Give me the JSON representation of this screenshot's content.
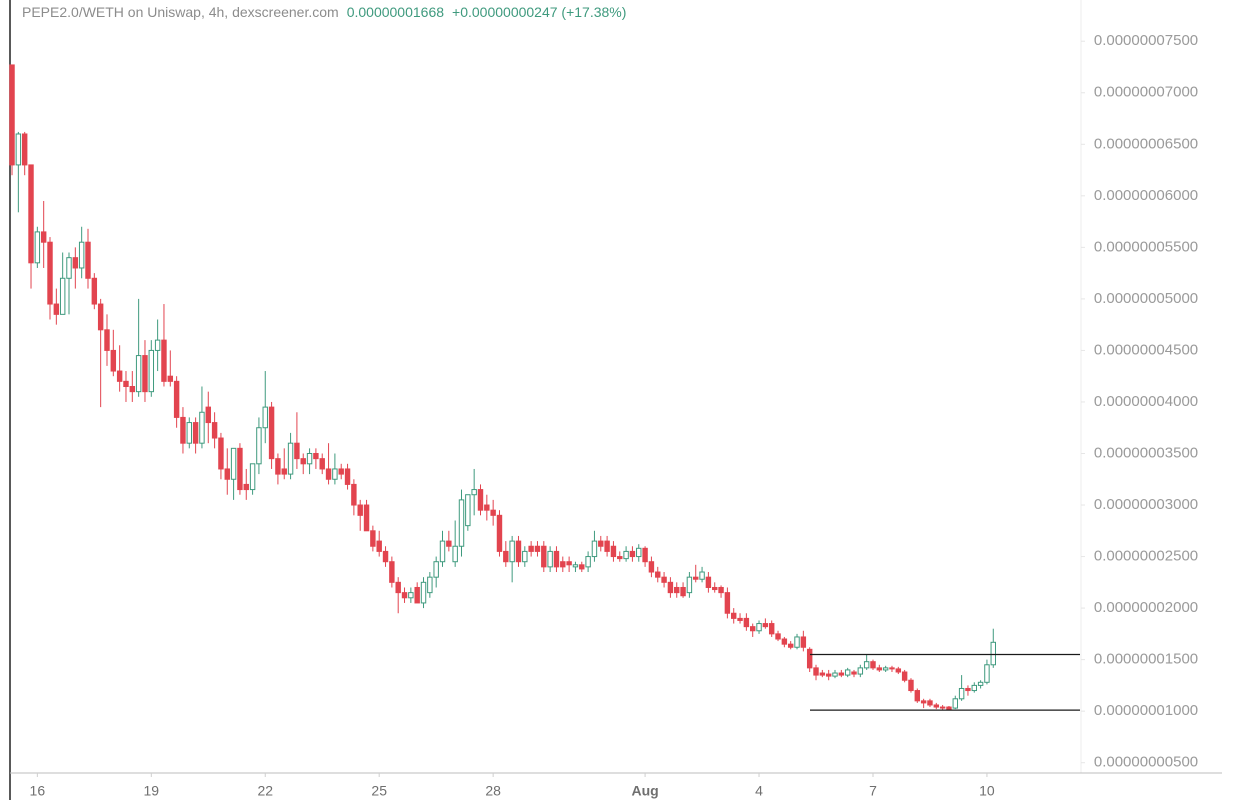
{
  "chart_data": {
    "type": "candlestick",
    "title": "PEPE2.0/WETH on Uniswap, 4h, dexscreener.com",
    "price_label": "0.00000001668",
    "change_label": "+0.00000000247 (+17.38%)",
    "up_color": "#3f9a7e",
    "down_color": "#e2444f",
    "line_color": "#1a1a1a",
    "ylim": [
      4e-09,
      7.9e-08
    ],
    "yticks": [
      {
        "value": 5e-09,
        "label": "0.00000000500"
      },
      {
        "value": 1e-08,
        "label": "0.00000001000"
      },
      {
        "value": 1.5e-08,
        "label": "0.00000001500"
      },
      {
        "value": 2e-08,
        "label": "0.00000002000"
      },
      {
        "value": 2.5e-08,
        "label": "0.00000002500"
      },
      {
        "value": 3e-08,
        "label": "0.00000003000"
      },
      {
        "value": 3.5e-08,
        "label": "0.00000003500"
      },
      {
        "value": 4e-08,
        "label": "0.00000004000"
      },
      {
        "value": 4.5e-08,
        "label": "0.00000004500"
      },
      {
        "value": 5e-08,
        "label": "0.00000005000"
      },
      {
        "value": 5.5e-08,
        "label": "0.00000005500"
      },
      {
        "value": 6e-08,
        "label": "0.00000006000"
      },
      {
        "value": 6.5e-08,
        "label": "0.00000006500"
      },
      {
        "value": 7e-08,
        "label": "0.00000007000"
      },
      {
        "value": 7.5e-08,
        "label": "0.00000007500"
      }
    ],
    "xlim": [
      -1.9,
      168.7
    ],
    "xticks": [
      {
        "value": 4,
        "label": "16"
      },
      {
        "value": 22,
        "label": "19"
      },
      {
        "value": 40,
        "label": "22"
      },
      {
        "value": 58,
        "label": "25"
      },
      {
        "value": 76,
        "label": "28"
      },
      {
        "value": 100,
        "label": "Aug"
      },
      {
        "value": 118,
        "label": "4"
      },
      {
        "value": 136,
        "label": "7"
      },
      {
        "value": 154,
        "label": "10"
      }
    ],
    "hlines": [
      1.55e-08,
      1.01e-08
    ],
    "open": [
      7.27e-08,
      6.3e-08,
      6.6e-08,
      6.3e-08,
      5.35e-08,
      5.65e-08,
      5.55e-08,
      4.95e-08,
      4.85e-08,
      5.2e-08,
      5.4e-08,
      5.3e-08,
      5.55e-08,
      5.2e-08,
      4.95e-08,
      4.7e-08,
      4.5e-08,
      4.3e-08,
      4.2e-08,
      4.15e-08,
      4.1e-08,
      4.45e-08,
      4.1e-08,
      4.5e-08,
      4.6e-08,
      4.25e-08,
      4.2e-08,
      3.85e-08,
      3.6e-08,
      3.8e-08,
      3.6e-08,
      3.95e-08,
      3.8e-08,
      3.65e-08,
      3.35e-08,
      3.25e-08,
      3.55e-08,
      3.2e-08,
      3.15e-08,
      3.4e-08,
      3.75e-08,
      3.95e-08,
      3.45e-08,
      3.35e-08,
      3.3e-08,
      3.6e-08,
      3.45e-08,
      3.4e-08,
      3.5e-08,
      3.45e-08,
      3.35e-08,
      3.25e-08,
      3.35e-08,
      3.35e-08,
      3.2e-08,
      3e-08,
      3e-08,
      2.75e-08,
      2.65e-08,
      2.55e-08,
      2.45e-08,
      2.25e-08,
      2.15e-08,
      2.1e-08,
      2.2e-08,
      2.05e-08,
      2.15e-08,
      2.3e-08,
      2.45e-08,
      2.65e-08,
      2.45e-08,
      2.6e-08,
      2.8e-08,
      3.1e-08,
      3.15e-08,
      3e-08,
      2.95e-08,
      2.9e-08,
      2.55e-08,
      2.45e-08,
      2.65e-08,
      2.45e-08,
      2.6e-08,
      2.6e-08,
      2.6e-08,
      2.4e-08,
      2.55e-08,
      2.45e-08,
      2.45e-08,
      2.4e-08,
      2.42e-08,
      2.4e-08,
      2.5e-08,
      2.65e-08,
      2.65e-08,
      2.6e-08,
      2.5e-08,
      2.48e-08,
      2.55e-08,
      2.5e-08,
      2.58e-08,
      2.45e-08,
      2.35e-08,
      2.3e-08,
      2.25e-08,
      2.2e-08,
      2.2e-08,
      2.15e-08,
      2.3e-08,
      2.28e-08,
      2.3e-08,
      2.2e-08,
      2.2e-08,
      2.15e-08,
      1.95e-08,
      1.9e-08,
      1.9e-08,
      1.82e-08,
      1.78e-08,
      1.85e-08,
      1.85e-08,
      1.75e-08,
      1.7e-08,
      1.65e-08,
      1.62e-08,
      1.72e-08,
      1.6e-08,
      1.42e-08,
      1.37e-08,
      1.36e-08,
      1.34e-08,
      1.37e-08,
      1.35e-08,
      1.38e-08,
      1.36e-08,
      1.42e-08,
      1.48e-08,
      1.42e-08,
      1.4e-08,
      1.42e-08,
      1.41e-08,
      1.38e-08,
      1.3e-08,
      1.2e-08,
      1.1e-08,
      1.1e-08,
      1.06e-08,
      1.04e-08,
      1.04e-08,
      1.03e-08,
      1.12e-08,
      1.22e-08,
      1.2e-08,
      1.25e-08,
      1.28e-08,
      1.45e-08
    ],
    "high": [
      7.27e-08,
      6.62e-08,
      6.62e-08,
      6.3e-08,
      5.7e-08,
      5.95e-08,
      5.6e-08,
      5.1e-08,
      5.45e-08,
      5.45e-08,
      5.5e-08,
      5.7e-08,
      5.68e-08,
      5.25e-08,
      5e-08,
      4.85e-08,
      4.7e-08,
      4.55e-08,
      4.3e-08,
      4.3e-08,
      5e-08,
      4.6e-08,
      4.6e-08,
      4.8e-08,
      4.95e-08,
      4.5e-08,
      4.25e-08,
      3.95e-08,
      3.85e-08,
      3.85e-08,
      4.15e-08,
      4.1e-08,
      3.9e-08,
      3.7e-08,
      3.55e-08,
      3.55e-08,
      3.6e-08,
      3.35e-08,
      3.4e-08,
      3.85e-08,
      4.3e-08,
      4e-08,
      3.5e-08,
      3.55e-08,
      3.7e-08,
      3.9e-08,
      3.5e-08,
      3.55e-08,
      3.55e-08,
      3.5e-08,
      3.6e-08,
      3.5e-08,
      3.4e-08,
      3.4e-08,
      3.25e-08,
      3.05e-08,
      3.05e-08,
      2.8e-08,
      2.75e-08,
      2.6e-08,
      2.5e-08,
      2.3e-08,
      2.2e-08,
      2.2e-08,
      2.25e-08,
      2.3e-08,
      2.35e-08,
      2.5e-08,
      2.75e-08,
      2.75e-08,
      2.85e-08,
      3.15e-08,
      3.1e-08,
      3.35e-08,
      3.2e-08,
      3.1e-08,
      3.05e-08,
      2.95e-08,
      2.65e-08,
      2.7e-08,
      2.7e-08,
      2.6e-08,
      2.65e-08,
      2.65e-08,
      2.65e-08,
      2.6e-08,
      2.6e-08,
      2.5e-08,
      2.5e-08,
      2.45e-08,
      2.45e-08,
      2.55e-08,
      2.75e-08,
      2.7e-08,
      2.7e-08,
      2.65e-08,
      2.55e-08,
      2.6e-08,
      2.6e-08,
      2.62e-08,
      2.6e-08,
      2.5e-08,
      2.4e-08,
      2.35e-08,
      2.3e-08,
      2.25e-08,
      2.25e-08,
      2.35e-08,
      2.42e-08,
      2.4e-08,
      2.35e-08,
      2.25e-08,
      2.22e-08,
      2.2e-08,
      2e-08,
      1.95e-08,
      1.95e-08,
      1.85e-08,
      1.88e-08,
      1.9e-08,
      1.88e-08,
      1.78e-08,
      1.72e-08,
      1.68e-08,
      1.75e-08,
      1.78e-08,
      1.62e-08,
      1.45e-08,
      1.4e-08,
      1.4e-08,
      1.4e-08,
      1.4e-08,
      1.42e-08,
      1.4e-08,
      1.45e-08,
      1.55e-08,
      1.5e-08,
      1.45e-08,
      1.44e-08,
      1.44e-08,
      1.43e-08,
      1.4e-08,
      1.32e-08,
      1.22e-08,
      1.12e-08,
      1.12e-08,
      1.08e-08,
      1.06e-08,
      1.05e-08,
      1.15e-08,
      1.35e-08,
      1.25e-08,
      1.28e-08,
      1.3e-08,
      1.5e-08,
      1.8e-08
    ],
    "low": [
      6.2e-08,
      5.84e-08,
      6.2e-08,
      5.1e-08,
      5.3e-08,
      5.3e-08,
      4.8e-08,
      4.75e-08,
      4.85e-08,
      4.85e-08,
      5.1e-08,
      5.2e-08,
      5.1e-08,
      4.9e-08,
      3.95e-08,
      4.35e-08,
      4.25e-08,
      4.1e-08,
      4e-08,
      4e-08,
      4.05e-08,
      4e-08,
      4.05e-08,
      4.3e-08,
      4.15e-08,
      4.15e-08,
      3.75e-08,
      3.5e-08,
      3.55e-08,
      3.5e-08,
      3.55e-08,
      3.6e-08,
      3.55e-08,
      3.25e-08,
      3.1e-08,
      3.05e-08,
      3.1e-08,
      3.05e-08,
      3.1e-08,
      3.3e-08,
      3.6e-08,
      3.35e-08,
      3.2e-08,
      3.25e-08,
      3.25e-08,
      3.35e-08,
      3.3e-08,
      3.3e-08,
      3.35e-08,
      3.3e-08,
      3.2e-08,
      3.2e-08,
      3.25e-08,
      3.15e-08,
      2.9e-08,
      2.75e-08,
      2.75e-08,
      2.55e-08,
      2.5e-08,
      2.4e-08,
      2.2e-08,
      1.95e-08,
      2.05e-08,
      2.05e-08,
      2.05e-08,
      2e-08,
      2.1e-08,
      2.2e-08,
      2.4e-08,
      2.55e-08,
      2.4e-08,
      2.5e-08,
      2.75e-08,
      2.9e-08,
      2.9e-08,
      2.85e-08,
      2.8e-08,
      2.5e-08,
      2.4e-08,
      2.25e-08,
      2.4e-08,
      2.4e-08,
      2.5e-08,
      2.5e-08,
      2.35e-08,
      2.35e-08,
      2.35e-08,
      2.35e-08,
      2.35e-08,
      2.35e-08,
      2.35e-08,
      2.35e-08,
      2.45e-08,
      2.55e-08,
      2.5e-08,
      2.45e-08,
      2.45e-08,
      2.45e-08,
      2.45e-08,
      2.45e-08,
      2.4e-08,
      2.3e-08,
      2.25e-08,
      2.2e-08,
      2.1e-08,
      2.1e-08,
      2.1e-08,
      2.1e-08,
      2.25e-08,
      2.25e-08,
      2.15e-08,
      2.15e-08,
      2.1e-08,
      1.9e-08,
      1.85e-08,
      1.85e-08,
      1.78e-08,
      1.72e-08,
      1.75e-08,
      1.8e-08,
      1.72e-08,
      1.68e-08,
      1.62e-08,
      1.6e-08,
      1.6e-08,
      1.58e-08,
      1.38e-08,
      1.3e-08,
      1.33e-08,
      1.3e-08,
      1.32e-08,
      1.33e-08,
      1.33e-08,
      1.33e-08,
      1.33e-08,
      1.4e-08,
      1.4e-08,
      1.38e-08,
      1.38e-08,
      1.38e-08,
      1.36e-08,
      1.28e-08,
      1.18e-08,
      1.08e-08,
      1.03e-08,
      1.04e-08,
      1.02e-08,
      1.01e-08,
      1.01e-08,
      1.02e-08,
      1.1e-08,
      1.15e-08,
      1.18e-08,
      1.22e-08,
      1.26e-08,
      1.42e-08
    ],
    "close": [
      6.3e-08,
      6.6e-08,
      6.3e-08,
      5.35e-08,
      5.65e-08,
      5.55e-08,
      4.95e-08,
      4.85e-08,
      5.2e-08,
      5.4e-08,
      5.3e-08,
      5.55e-08,
      5.2e-08,
      4.95e-08,
      4.7e-08,
      4.5e-08,
      4.3e-08,
      4.2e-08,
      4.15e-08,
      4.1e-08,
      4.45e-08,
      4.1e-08,
      4.5e-08,
      4.6e-08,
      4.2e-08,
      4.2e-08,
      3.85e-08,
      3.6e-08,
      3.8e-08,
      3.6e-08,
      3.9e-08,
      3.8e-08,
      3.65e-08,
      3.35e-08,
      3.25e-08,
      3.55e-08,
      3.15e-08,
      3.15e-08,
      3.4e-08,
      3.75e-08,
      3.95e-08,
      3.45e-08,
      3.3e-08,
      3.3e-08,
      3.6e-08,
      3.45e-08,
      3.4e-08,
      3.5e-08,
      3.45e-08,
      3.35e-08,
      3.25e-08,
      3.35e-08,
      3.3e-08,
      3.2e-08,
      3e-08,
      2.9e-08,
      2.75e-08,
      2.6e-08,
      2.55e-08,
      2.45e-08,
      2.25e-08,
      2.15e-08,
      2.1e-08,
      2.15e-08,
      2.05e-08,
      2.25e-08,
      2.3e-08,
      2.45e-08,
      2.65e-08,
      2.6e-08,
      2.6e-08,
      3.05e-08,
      3.1e-08,
      3.15e-08,
      2.95e-08,
      2.95e-08,
      2.9e-08,
      2.55e-08,
      2.45e-08,
      2.65e-08,
      2.45e-08,
      2.55e-08,
      2.55e-08,
      2.55e-08,
      2.4e-08,
      2.55e-08,
      2.4e-08,
      2.4e-08,
      2.42e-08,
      2.42e-08,
      2.38e-08,
      2.5e-08,
      2.65e-08,
      2.6e-08,
      2.55e-08,
      2.5e-08,
      2.48e-08,
      2.55e-08,
      2.5e-08,
      2.58e-08,
      2.45e-08,
      2.35e-08,
      2.3e-08,
      2.25e-08,
      2.15e-08,
      2.15e-08,
      2.12e-08,
      2.3e-08,
      2.28e-08,
      2.35e-08,
      2.2e-08,
      2.18e-08,
      2.15e-08,
      1.95e-08,
      1.9e-08,
      1.88e-08,
      1.82e-08,
      1.78e-08,
      1.85e-08,
      1.82e-08,
      1.75e-08,
      1.7e-08,
      1.65e-08,
      1.62e-08,
      1.72e-08,
      1.62e-08,
      1.42e-08,
      1.35e-08,
      1.35e-08,
      1.34e-08,
      1.37e-08,
      1.35e-08,
      1.4e-08,
      1.36e-08,
      1.42e-08,
      1.48e-08,
      1.42e-08,
      1.4e-08,
      1.42e-08,
      1.41e-08,
      1.38e-08,
      1.3e-08,
      1.2e-08,
      1.1e-08,
      1.08e-08,
      1.06e-08,
      1.04e-08,
      1.03e-08,
      1.02e-08,
      1.12e-08,
      1.22e-08,
      1.2e-08,
      1.25e-08,
      1.28e-08,
      1.45e-08,
      1.668e-08
    ]
  }
}
